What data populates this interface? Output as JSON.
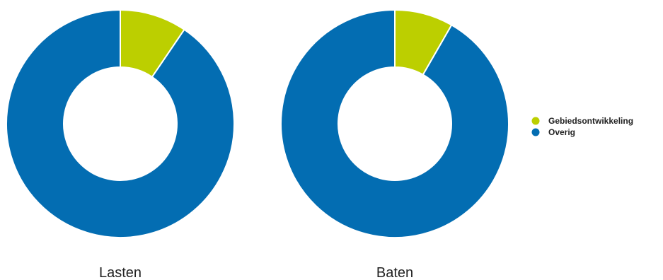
{
  "colors": {
    "Gebiedsontwikkeling": "#bccf00",
    "Overig": "#036db2",
    "separator": "#ffffff"
  },
  "legend": {
    "position": "right",
    "items": [
      {
        "label": "Gebiedsontwikkeling",
        "color": "#bccf00"
      },
      {
        "label": "Overig",
        "color": "#036db2"
      }
    ]
  },
  "chart_data": [
    {
      "type": "pie",
      "style": "donut",
      "title": "Lasten",
      "categories": [
        "Gebiedsontwikkeling",
        "Overig"
      ],
      "values": [
        9.5,
        90.5
      ]
    },
    {
      "type": "pie",
      "style": "donut",
      "title": "Baten",
      "categories": [
        "Gebiedsontwikkeling",
        "Overig"
      ],
      "values": [
        8.3,
        91.7
      ]
    }
  ]
}
